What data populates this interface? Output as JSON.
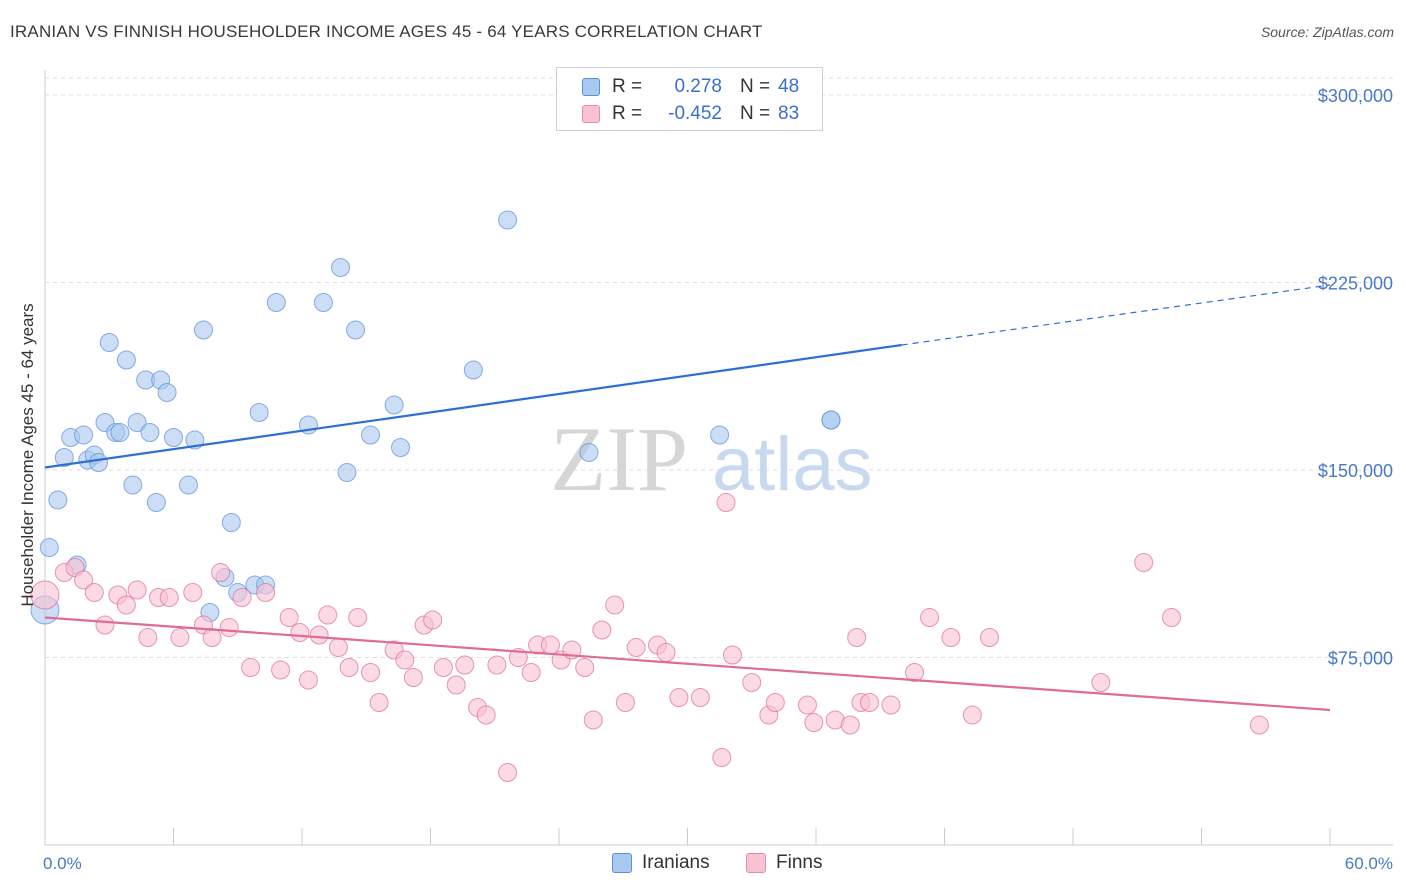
{
  "title": "IRANIAN VS FINNISH HOUSEHOLDER INCOME AGES 45 - 64 YEARS CORRELATION CHART",
  "source": "Source: ZipAtlas.com",
  "watermark": {
    "zip": "ZIP",
    "atlas": "atlas"
  },
  "legend_top": {
    "rows": [
      {
        "r_label": "R =",
        "r_value": "0.278",
        "n_label": "N =",
        "n_value": "48",
        "color": "#a9c8f0",
        "border": "#5b8fd8"
      },
      {
        "r_label": "R =",
        "r_value": "-0.452",
        "n_label": "N =",
        "n_value": "83",
        "color": "#f8c2d4",
        "border": "#e88aab"
      }
    ]
  },
  "legend_bottom": {
    "items": [
      {
        "label": "Iranians",
        "color": "#a9c8f0",
        "border": "#5b8fd8"
      },
      {
        "label": "Finns",
        "color": "#f8c2d4",
        "border": "#e88aab"
      }
    ]
  },
  "chart_data": {
    "type": "scatter",
    "title": "IRANIAN VS FINNISH HOUSEHOLDER INCOME AGES 45 - 64 YEARS CORRELATION CHART",
    "xlabel": "",
    "ylabel": "Householder Income Ages 45 - 64 years",
    "x_tick_labels": [
      "0.0%",
      "60.0%"
    ],
    "y_tick_labels": [
      "$75,000",
      "$150,000",
      "$225,000",
      "$300,000"
    ],
    "y_ticks": [
      75000,
      150000,
      225000,
      300000
    ],
    "xlim": [
      0,
      60
    ],
    "ylim": [
      0,
      310000
    ],
    "grid": true,
    "legend_position": "top-center",
    "series": [
      {
        "name": "Iranians",
        "color": "#5b8fd8",
        "fill": "#a9c8f0",
        "trend": {
          "x0": 0,
          "y0": 151000,
          "x1": 40,
          "y1": 200000,
          "dash_to_x": 60,
          "dash_to_y": 224000
        },
        "points": [
          {
            "x": 0.0,
            "y": 94000,
            "big": true
          },
          {
            "x": 0.2,
            "y": 119000
          },
          {
            "x": 0.6,
            "y": 138000
          },
          {
            "x": 0.9,
            "y": 155000
          },
          {
            "x": 1.2,
            "y": 163000
          },
          {
            "x": 1.5,
            "y": 112000
          },
          {
            "x": 1.8,
            "y": 164000
          },
          {
            "x": 2.0,
            "y": 154000
          },
          {
            "x": 2.3,
            "y": 156000
          },
          {
            "x": 2.5,
            "y": 153000
          },
          {
            "x": 2.8,
            "y": 169000
          },
          {
            "x": 3.0,
            "y": 201000
          },
          {
            "x": 3.3,
            "y": 165000
          },
          {
            "x": 3.5,
            "y": 165000
          },
          {
            "x": 3.8,
            "y": 194000
          },
          {
            "x": 4.1,
            "y": 144000
          },
          {
            "x": 4.3,
            "y": 169000
          },
          {
            "x": 4.7,
            "y": 186000
          },
          {
            "x": 4.9,
            "y": 165000
          },
          {
            "x": 5.2,
            "y": 137000
          },
          {
            "x": 5.4,
            "y": 186000
          },
          {
            "x": 5.7,
            "y": 181000
          },
          {
            "x": 6.0,
            "y": 163000
          },
          {
            "x": 6.7,
            "y": 144000
          },
          {
            "x": 7.0,
            "y": 162000
          },
          {
            "x": 7.4,
            "y": 206000
          },
          {
            "x": 7.7,
            "y": 93000
          },
          {
            "x": 8.4,
            "y": 107000
          },
          {
            "x": 8.7,
            "y": 129000
          },
          {
            "x": 9.0,
            "y": 101000
          },
          {
            "x": 9.8,
            "y": 104000
          },
          {
            "x": 10.0,
            "y": 173000
          },
          {
            "x": 10.3,
            "y": 104000
          },
          {
            "x": 10.8,
            "y": 217000
          },
          {
            "x": 12.3,
            "y": 168000
          },
          {
            "x": 13.0,
            "y": 217000
          },
          {
            "x": 13.8,
            "y": 231000
          },
          {
            "x": 14.1,
            "y": 149000
          },
          {
            "x": 14.5,
            "y": 206000
          },
          {
            "x": 15.2,
            "y": 164000
          },
          {
            "x": 16.3,
            "y": 176000
          },
          {
            "x": 16.6,
            "y": 159000
          },
          {
            "x": 20.0,
            "y": 190000
          },
          {
            "x": 21.6,
            "y": 250000
          },
          {
            "x": 25.4,
            "y": 157000
          },
          {
            "x": 31.5,
            "y": 164000
          },
          {
            "x": 36.7,
            "y": 170000
          },
          {
            "x": 36.7,
            "y": 170000
          }
        ]
      },
      {
        "name": "Finns",
        "color": "#e06c94",
        "fill": "#f8c2d4",
        "trend": {
          "x0": 0,
          "y0": 91000,
          "x1": 60,
          "y1": 54000
        },
        "points": [
          {
            "x": 0.0,
            "y": 100000,
            "big": true
          },
          {
            "x": 0.9,
            "y": 109000
          },
          {
            "x": 1.4,
            "y": 111000
          },
          {
            "x": 1.8,
            "y": 106000
          },
          {
            "x": 2.3,
            "y": 101000
          },
          {
            "x": 2.8,
            "y": 88000
          },
          {
            "x": 3.4,
            "y": 100000
          },
          {
            "x": 3.8,
            "y": 96000
          },
          {
            "x": 4.3,
            "y": 102000
          },
          {
            "x": 4.8,
            "y": 83000
          },
          {
            "x": 5.3,
            "y": 99000
          },
          {
            "x": 5.8,
            "y": 99000
          },
          {
            "x": 6.3,
            "y": 83000
          },
          {
            "x": 6.9,
            "y": 101000
          },
          {
            "x": 7.4,
            "y": 88000
          },
          {
            "x": 7.8,
            "y": 83000
          },
          {
            "x": 8.2,
            "y": 109000
          },
          {
            "x": 8.6,
            "y": 87000
          },
          {
            "x": 9.2,
            "y": 99000
          },
          {
            "x": 9.6,
            "y": 71000
          },
          {
            "x": 10.3,
            "y": 101000
          },
          {
            "x": 11.0,
            "y": 70000
          },
          {
            "x": 11.4,
            "y": 91000
          },
          {
            "x": 11.9,
            "y": 85000
          },
          {
            "x": 12.3,
            "y": 66000
          },
          {
            "x": 12.8,
            "y": 84000
          },
          {
            "x": 13.2,
            "y": 92000
          },
          {
            "x": 13.7,
            "y": 79000
          },
          {
            "x": 14.2,
            "y": 71000
          },
          {
            "x": 14.6,
            "y": 91000
          },
          {
            "x": 15.2,
            "y": 69000
          },
          {
            "x": 15.6,
            "y": 57000
          },
          {
            "x": 16.3,
            "y": 78000
          },
          {
            "x": 16.8,
            "y": 74000
          },
          {
            "x": 17.2,
            "y": 67000
          },
          {
            "x": 17.7,
            "y": 88000
          },
          {
            "x": 18.1,
            "y": 90000
          },
          {
            "x": 18.6,
            "y": 71000
          },
          {
            "x": 19.2,
            "y": 64000
          },
          {
            "x": 19.6,
            "y": 72000
          },
          {
            "x": 20.2,
            "y": 55000
          },
          {
            "x": 20.6,
            "y": 52000
          },
          {
            "x": 21.1,
            "y": 72000
          },
          {
            "x": 21.6,
            "y": 29000
          },
          {
            "x": 22.1,
            "y": 75000
          },
          {
            "x": 22.7,
            "y": 69000
          },
          {
            "x": 23.0,
            "y": 80000
          },
          {
            "x": 23.6,
            "y": 80000
          },
          {
            "x": 24.1,
            "y": 74000
          },
          {
            "x": 24.6,
            "y": 78000
          },
          {
            "x": 25.2,
            "y": 71000
          },
          {
            "x": 25.6,
            "y": 50000
          },
          {
            "x": 26.0,
            "y": 86000
          },
          {
            "x": 26.6,
            "y": 96000
          },
          {
            "x": 27.1,
            "y": 57000
          },
          {
            "x": 27.6,
            "y": 79000
          },
          {
            "x": 28.6,
            "y": 80000
          },
          {
            "x": 29.0,
            "y": 77000
          },
          {
            "x": 29.6,
            "y": 59000
          },
          {
            "x": 30.6,
            "y": 59000
          },
          {
            "x": 31.6,
            "y": 35000
          },
          {
            "x": 31.8,
            "y": 137000
          },
          {
            "x": 32.1,
            "y": 76000
          },
          {
            "x": 33.0,
            "y": 65000
          },
          {
            "x": 33.8,
            "y": 52000
          },
          {
            "x": 34.1,
            "y": 57000
          },
          {
            "x": 35.6,
            "y": 56000
          },
          {
            "x": 35.9,
            "y": 49000
          },
          {
            "x": 36.9,
            "y": 50000
          },
          {
            "x": 37.6,
            "y": 48000
          },
          {
            "x": 37.9,
            "y": 83000
          },
          {
            "x": 38.1,
            "y": 57000
          },
          {
            "x": 38.5,
            "y": 57000
          },
          {
            "x": 39.5,
            "y": 56000
          },
          {
            "x": 40.6,
            "y": 69000
          },
          {
            "x": 41.3,
            "y": 91000
          },
          {
            "x": 42.3,
            "y": 83000
          },
          {
            "x": 43.3,
            "y": 52000
          },
          {
            "x": 44.1,
            "y": 83000
          },
          {
            "x": 49.3,
            "y": 65000
          },
          {
            "x": 51.3,
            "y": 113000
          },
          {
            "x": 52.6,
            "y": 91000
          },
          {
            "x": 56.7,
            "y": 48000
          }
        ]
      }
    ]
  }
}
